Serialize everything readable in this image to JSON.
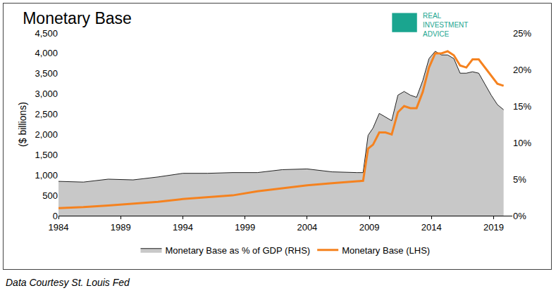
{
  "chart_data": {
    "type": "line",
    "title": "Monetary Base",
    "y_label": "($ billions)",
    "source": "Data Courtesy St. Louis Fed",
    "logo_text": [
      "REAL",
      "INVESTMENT",
      "ADVICE"
    ],
    "x": [
      1984,
      1986,
      1988,
      1990,
      1992,
      1994,
      1996,
      1998,
      2000,
      2002,
      2004,
      2006,
      2008,
      2008.5,
      2008.9,
      2009.3,
      2009.8,
      2010.3,
      2010.8,
      2011.3,
      2011.8,
      2012.3,
      2012.8,
      2013.3,
      2013.8,
      2014.3,
      2014.8,
      2015.3,
      2015.8,
      2016.3,
      2016.8,
      2017.3,
      2017.8,
      2018.3,
      2018.8,
      2019.3,
      2019.8
    ],
    "series": [
      {
        "name": "Monetary Base as % of GDP (RHS)",
        "type": "area",
        "color": "#c8c8c8",
        "axis": "y2",
        "values": [
          4.7,
          4.6,
          5.0,
          4.9,
          5.3,
          5.8,
          5.8,
          5.9,
          5.9,
          6.3,
          6.4,
          6.0,
          5.9,
          5.9,
          11.0,
          12.0,
          14.0,
          13.5,
          13.0,
          16.5,
          17.0,
          16.5,
          16.2,
          18.5,
          21.5,
          22.5,
          22.0,
          22.0,
          21.5,
          19.5,
          19.5,
          19.7,
          19.5,
          18.0,
          16.5,
          15.2,
          14.5
        ]
      },
      {
        "name": "Monetary Base (LHS)",
        "type": "line",
        "color": "#f5821f",
        "values": [
          185,
          210,
          250,
          290,
          340,
          410,
          450,
          500,
          600,
          670,
          750,
          800,
          840,
          860,
          1650,
          1750,
          2050,
          2050,
          2000,
          2550,
          2700,
          2650,
          2650,
          3050,
          3650,
          4000,
          4000,
          4050,
          3950,
          3700,
          3650,
          3850,
          3850,
          3650,
          3450,
          3250,
          3200
        ]
      }
    ],
    "xlim": [
      1984,
      2020.5
    ],
    "xticks": [
      1984,
      1989,
      1994,
      1999,
      2004,
      2009,
      2014,
      2019
    ],
    "ylim": [
      0,
      4500
    ],
    "yticks": [
      0,
      500,
      {
        "value": 1000,
        "label": "1,000"
      },
      {
        "value": 1500,
        "label": "1,500"
      },
      {
        "value": 2000,
        "label": "2,000"
      },
      {
        "value": 2500,
        "label": "2,500"
      },
      {
        "value": 3000,
        "label": "3,000"
      },
      {
        "value": 3500,
        "label": "3,500"
      },
      {
        "value": 4000,
        "label": "4,000"
      },
      {
        "value": 4500,
        "label": "4,500"
      }
    ],
    "y2lim": [
      0,
      25
    ],
    "y2ticks": [
      {
        "value": 0,
        "label": "0%"
      },
      {
        "value": 5,
        "label": "5%"
      },
      {
        "value": 10,
        "label": "10%"
      },
      {
        "value": 15,
        "label": "15%"
      },
      {
        "value": 20,
        "label": "20%"
      },
      {
        "value": 25,
        "label": "25%"
      }
    ],
    "grid": false,
    "legend": "bottom"
  }
}
